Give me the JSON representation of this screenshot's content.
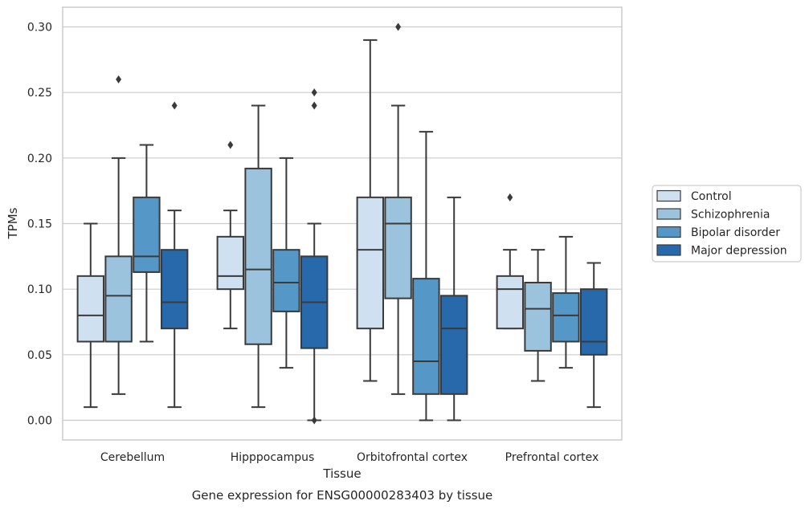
{
  "chart_data": {
    "type": "box",
    "xlabel": "Tissue",
    "ylabel": "TPMs",
    "caption": "Gene expression for ENSG00000283403 by tissue",
    "ylim": [
      -0.015,
      0.315
    ],
    "yticks": [
      "0.00",
      "0.05",
      "0.10",
      "0.15",
      "0.20",
      "0.25",
      "0.30"
    ],
    "grid": true,
    "legend_position": "right",
    "categories": [
      "Cerebellum",
      "Hipppocampus",
      "Orbitofrontal cortex",
      "Prefrontal cortex"
    ],
    "series": [
      {
        "name": "Control",
        "color": "#cfe0f1",
        "boxes": [
          {
            "min": 0.01,
            "q1": 0.06,
            "median": 0.08,
            "q3": 0.11,
            "max": 0.15,
            "outliers": []
          },
          {
            "min": 0.07,
            "q1": 0.1,
            "median": 0.11,
            "q3": 0.14,
            "max": 0.16,
            "outliers": [
              0.21
            ]
          },
          {
            "min": 0.03,
            "q1": 0.07,
            "median": 0.13,
            "q3": 0.17,
            "max": 0.29,
            "outliers": []
          },
          {
            "min": 0.07,
            "q1": 0.07,
            "median": 0.1,
            "q3": 0.11,
            "max": 0.13,
            "outliers": [
              0.17
            ]
          }
        ]
      },
      {
        "name": "Schizophrenia",
        "color": "#9bc3dd",
        "boxes": [
          {
            "min": 0.02,
            "q1": 0.06,
            "median": 0.095,
            "q3": 0.125,
            "max": 0.2,
            "outliers": [
              0.26
            ]
          },
          {
            "min": 0.01,
            "q1": 0.058,
            "median": 0.115,
            "q3": 0.192,
            "max": 0.24,
            "outliers": []
          },
          {
            "min": 0.02,
            "q1": 0.093,
            "median": 0.15,
            "q3": 0.17,
            "max": 0.24,
            "outliers": [
              0.3
            ]
          },
          {
            "min": 0.03,
            "q1": 0.053,
            "median": 0.085,
            "q3": 0.105,
            "max": 0.13,
            "outliers": []
          }
        ]
      },
      {
        "name": "Bipolar disorder",
        "color": "#5597c6",
        "boxes": [
          {
            "min": 0.06,
            "q1": 0.113,
            "median": 0.125,
            "q3": 0.17,
            "max": 0.21,
            "outliers": []
          },
          {
            "min": 0.04,
            "q1": 0.083,
            "median": 0.105,
            "q3": 0.13,
            "max": 0.2,
            "outliers": []
          },
          {
            "min": 0.0,
            "q1": 0.02,
            "median": 0.045,
            "q3": 0.108,
            "max": 0.22,
            "outliers": []
          },
          {
            "min": 0.04,
            "q1": 0.06,
            "median": 0.08,
            "q3": 0.097,
            "max": 0.14,
            "outliers": []
          }
        ]
      },
      {
        "name": "Major depression",
        "color": "#2769ab",
        "boxes": [
          {
            "min": 0.01,
            "q1": 0.07,
            "median": 0.09,
            "q3": 0.13,
            "max": 0.16,
            "outliers": [
              0.24
            ]
          },
          {
            "min": 0.0,
            "q1": 0.055,
            "median": 0.09,
            "q3": 0.125,
            "max": 0.15,
            "outliers": [
              0.24,
              0.25,
              0.0
            ]
          },
          {
            "min": 0.0,
            "q1": 0.02,
            "median": 0.07,
            "q3": 0.095,
            "max": 0.17,
            "outliers": []
          },
          {
            "min": 0.01,
            "q1": 0.05,
            "median": 0.06,
            "q3": 0.1,
            "max": 0.12,
            "outliers": []
          }
        ]
      }
    ]
  },
  "style": {
    "line_color": "#3a3a3a",
    "grid_color": "#cccccc",
    "frame_color": "#cccccc"
  }
}
